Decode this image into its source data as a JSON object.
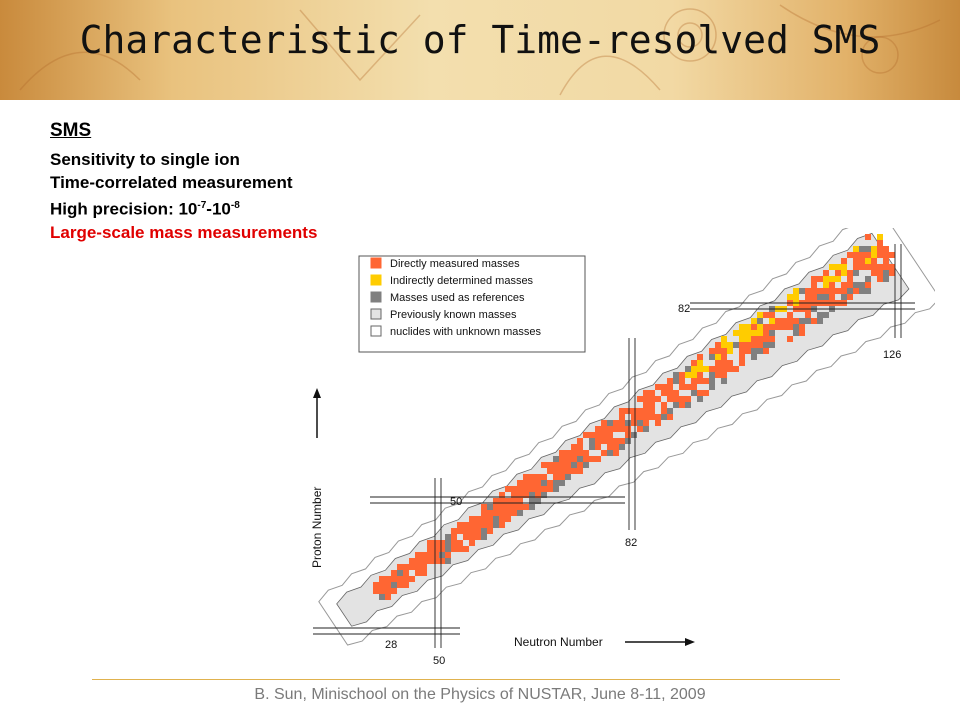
{
  "slide": {
    "title": "Characteristic of Time-resolved SMS",
    "footer": "B. Sun, Minischool on the Physics of NUSTAR, June 8-11, 2009"
  },
  "bullets": {
    "heading": "SMS",
    "line1": "Sensitivity to single ion",
    "line2": "Time-correlated measurement",
    "line3_prefix": "High precision: 10",
    "line3_exp1": "-7",
    "line3_mid": "-10",
    "line3_exp2": "-8",
    "line4": "Large-scale mass measurements"
  },
  "chart": {
    "xlabel": "Neutron Number",
    "ylabel": "Proton Number",
    "magic_labels": {
      "z28": "28",
      "z50": "50",
      "z82": "82",
      "n50": "50",
      "n82": "82",
      "n126": "126"
    },
    "legend": [
      {
        "label": "Directly measured masses",
        "color": "#ff6633",
        "stroke": "#ff6633"
      },
      {
        "label": "Indirectly determined masses",
        "color": "#ffcc00",
        "stroke": "#ffcc00"
      },
      {
        "label": "Masses used as references",
        "color": "#808080",
        "stroke": "#808080"
      },
      {
        "label": "Previously known masses",
        "color": "#e3e3e3",
        "stroke": "#666666"
      },
      {
        "label": "nuclides with unknown masses",
        "color": "#ffffff",
        "stroke": "#666666"
      }
    ],
    "colors": {
      "known": "#e3e3e3",
      "measured": "#ff6633",
      "indirect": "#ffcc00",
      "reference": "#808080",
      "outline": "#999999"
    }
  }
}
